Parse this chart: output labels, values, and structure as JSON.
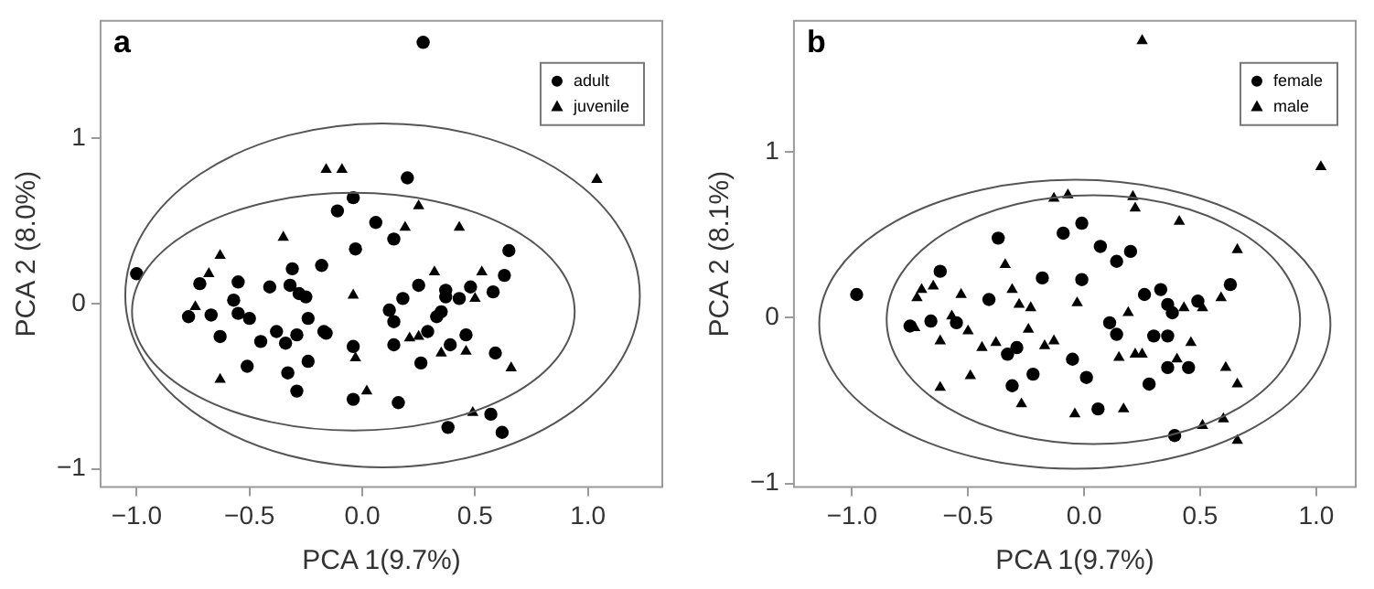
{
  "chart_data": [
    {
      "type": "scatter",
      "title": "a",
      "xlabel": "PCA 1(9.7%)",
      "ylabel": "PCA 2 (8.0%)",
      "xlim": [
        -1.16,
        1.33
      ],
      "ylim": [
        -1.11,
        1.71
      ],
      "xticks": [
        {
          "value": -1,
          "label": "−1.0"
        },
        {
          "value": -0.5,
          "label": "−0.5"
        },
        {
          "value": 0,
          "label": "0.0"
        },
        {
          "value": 0.5,
          "label": "0.5"
        },
        {
          "value": 1,
          "label": "1.0"
        }
      ],
      "yticks": [
        {
          "value": -1,
          "label": "−1"
        },
        {
          "value": 0,
          "label": "0"
        },
        {
          "value": 1,
          "label": "1"
        }
      ],
      "legend": "top right",
      "grid": false,
      "series": [
        {
          "name": "adult",
          "color": "#000000",
          "marker": "circle",
          "x": [
            0.27,
            0.2,
            -0.04,
            -0.11,
            0.06,
            0.14,
            -0.03,
            0.65,
            -0.31,
            -0.18,
            -1.0,
            0.63,
            -0.55,
            -0.72,
            -0.41,
            -0.32,
            -0.28,
            -0.25,
            0.25,
            0.37,
            0.43,
            0.48,
            0.58,
            -0.77,
            -0.67,
            -0.57,
            -0.55,
            -0.5,
            -0.24,
            -0.63,
            -0.38,
            -0.45,
            -0.34,
            -0.29,
            -0.17,
            -0.16,
            -0.51,
            -0.33,
            -0.24,
            -0.29,
            -0.04,
            -0.04,
            0.12,
            0.18,
            0.14,
            0.14,
            0.33,
            0.35,
            0.29,
            0.37,
            0.39,
            0.46,
            0.59,
            0.26,
            0.16,
            0.38,
            0.57,
            0.62
          ],
          "values": [
            1.58,
            0.76,
            0.64,
            0.56,
            0.49,
            0.39,
            0.33,
            0.32,
            0.21,
            0.23,
            0.18,
            0.17,
            0.13,
            0.12,
            0.1,
            0.11,
            0.06,
            0.04,
            0.11,
            0.08,
            0.03,
            0.1,
            0.07,
            -0.08,
            -0.07,
            0.02,
            -0.06,
            -0.09,
            -0.09,
            -0.2,
            -0.17,
            -0.23,
            -0.24,
            -0.19,
            -0.17,
            -0.18,
            -0.38,
            -0.42,
            -0.35,
            -0.53,
            -0.26,
            -0.58,
            -0.04,
            0.03,
            -0.11,
            -0.25,
            -0.08,
            -0.05,
            -0.17,
            0.04,
            -0.25,
            -0.19,
            -0.3,
            -0.36,
            -0.6,
            -0.75,
            -0.67,
            -0.78
          ]
        },
        {
          "name": "juvenile",
          "color": "#000000",
          "marker": "triangle",
          "x": [
            -0.16,
            -0.09,
            1.04,
            0.25,
            0.19,
            0.43,
            -0.35,
            -0.63,
            -0.68,
            0.32,
            0.53,
            -0.74,
            -0.04,
            0.5,
            0.21,
            0.25,
            -0.03,
            0.35,
            0.46,
            0.66,
            -0.63,
            0.02,
            0.49
          ],
          "values": [
            0.81,
            0.81,
            0.75,
            0.59,
            0.46,
            0.46,
            0.4,
            0.29,
            0.18,
            0.19,
            0.19,
            -0.02,
            0.05,
            0.03,
            -0.21,
            -0.2,
            -0.33,
            -0.3,
            -0.29,
            -0.39,
            -0.46,
            -0.53,
            -0.66
          ]
        }
      ]
    },
    {
      "type": "scatter",
      "title": "b",
      "xlabel": "PCA 1(9.7%)",
      "ylabel": "PCA 2 (8.1%)",
      "xlim": [
        -1.25,
        1.17
      ],
      "ylim": [
        -1.02,
        1.79
      ],
      "xticks": [
        {
          "value": -1,
          "label": "−1.0"
        },
        {
          "value": -0.5,
          "label": "−0.5"
        },
        {
          "value": 0,
          "label": "0.0"
        },
        {
          "value": 0.5,
          "label": "0.5"
        },
        {
          "value": 1,
          "label": "1.0"
        }
      ],
      "yticks": [
        {
          "value": -1,
          "label": "−1"
        },
        {
          "value": 0,
          "label": "0"
        },
        {
          "value": 1,
          "label": "1"
        }
      ],
      "legend": "top right",
      "grid": false,
      "series": [
        {
          "name": "female",
          "color": "#000000",
          "marker": "circle",
          "x": [
            -0.37,
            -0.09,
            -0.01,
            0.07,
            0.14,
            0.2,
            -0.62,
            -0.18,
            -0.01,
            0.63,
            0.33,
            0.26,
            -0.98,
            -0.41,
            0.36,
            0.38,
            0.49,
            0.11,
            0.14,
            0.3,
            0.36,
            0.36,
            0.45,
            0.28,
            -0.05,
            0.01,
            0.06,
            -0.31,
            -0.22,
            -0.33,
            -0.29,
            -0.55,
            -0.66,
            -0.75,
            0.39
          ],
          "values": [
            0.48,
            0.51,
            0.57,
            0.43,
            0.34,
            0.4,
            0.28,
            0.24,
            0.23,
            0.2,
            0.17,
            0.14,
            0.14,
            0.11,
            0.08,
            0.03,
            0.1,
            -0.03,
            -0.1,
            -0.11,
            -0.11,
            -0.3,
            -0.3,
            -0.4,
            -0.25,
            -0.36,
            -0.55,
            -0.41,
            -0.34,
            -0.22,
            -0.18,
            -0.03,
            -0.02,
            -0.05,
            -0.71
          ]
        },
        {
          "name": "male",
          "color": "#000000",
          "marker": "triangle",
          "x": [
            0.25,
            1.02,
            -0.13,
            -0.07,
            0.21,
            0.22,
            0.41,
            0.66,
            -0.34,
            -0.65,
            -0.7,
            -0.31,
            -0.53,
            -0.72,
            -0.28,
            -0.23,
            -0.03,
            0.43,
            0.51,
            0.59,
            0.19,
            0.46,
            0.4,
            0.61,
            0.66,
            0.15,
            0.22,
            0.25,
            0.17,
            -0.04,
            -0.27,
            -0.38,
            -0.44,
            -0.49,
            -0.62,
            -0.62,
            -0.5,
            -0.57,
            -0.73,
            -0.24,
            -0.17,
            -0.13,
            0.51,
            0.6,
            0.66
          ],
          "values": [
            1.67,
            0.91,
            0.72,
            0.74,
            0.73,
            0.66,
            0.58,
            0.41,
            0.32,
            0.19,
            0.17,
            0.17,
            0.14,
            0.12,
            0.08,
            0.06,
            0.09,
            0.06,
            0.06,
            0.12,
            0.03,
            -0.15,
            -0.25,
            -0.3,
            -0.4,
            -0.24,
            -0.22,
            -0.22,
            -0.55,
            -0.58,
            -0.52,
            -0.15,
            -0.18,
            -0.35,
            -0.42,
            -0.14,
            -0.08,
            0.01,
            -0.06,
            -0.07,
            -0.17,
            -0.14,
            -0.65,
            -0.61,
            -0.74
          ]
        }
      ]
    }
  ]
}
